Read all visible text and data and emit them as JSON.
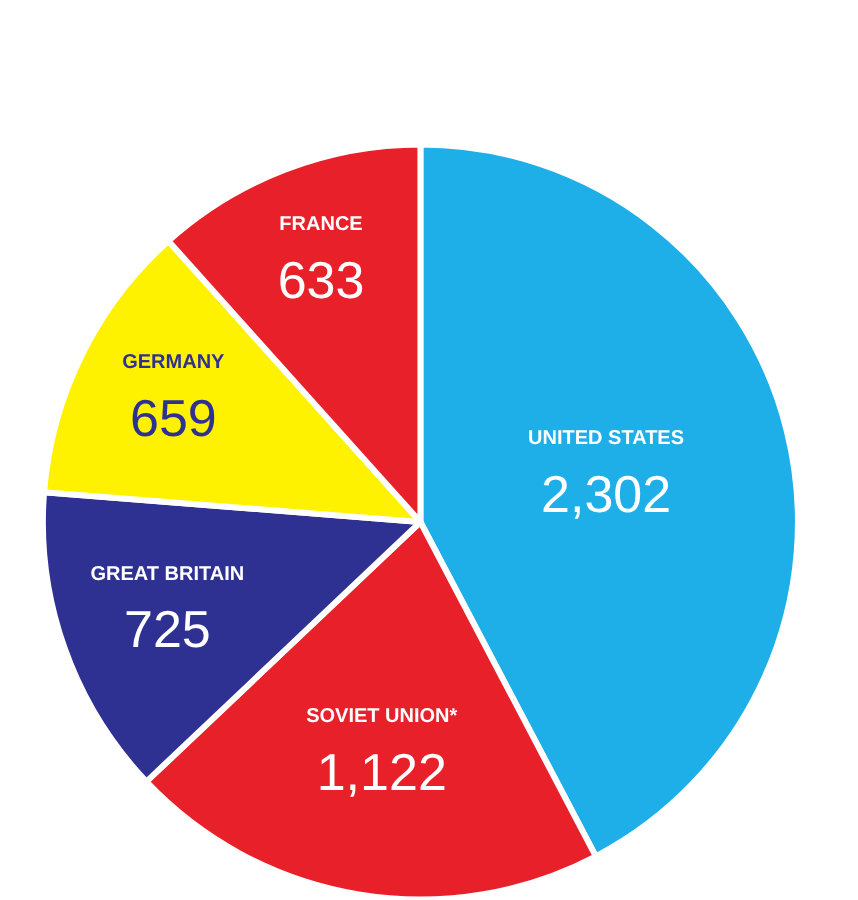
{
  "chart_data": {
    "type": "pie",
    "categories": [
      "UNITED STATES",
      "SOVIET UNION*",
      "GREAT BRITAIN",
      "GERMANY",
      "FRANCE"
    ],
    "values": [
      2302,
      1122,
      725,
      659,
      633
    ],
    "value_labels": [
      "2,302",
      "1,122",
      "725",
      "659",
      "633"
    ],
    "colors": [
      "#1eaee8",
      "#e8202a",
      "#2e3192",
      "#fff200",
      "#e8202a"
    ],
    "legend": false
  }
}
